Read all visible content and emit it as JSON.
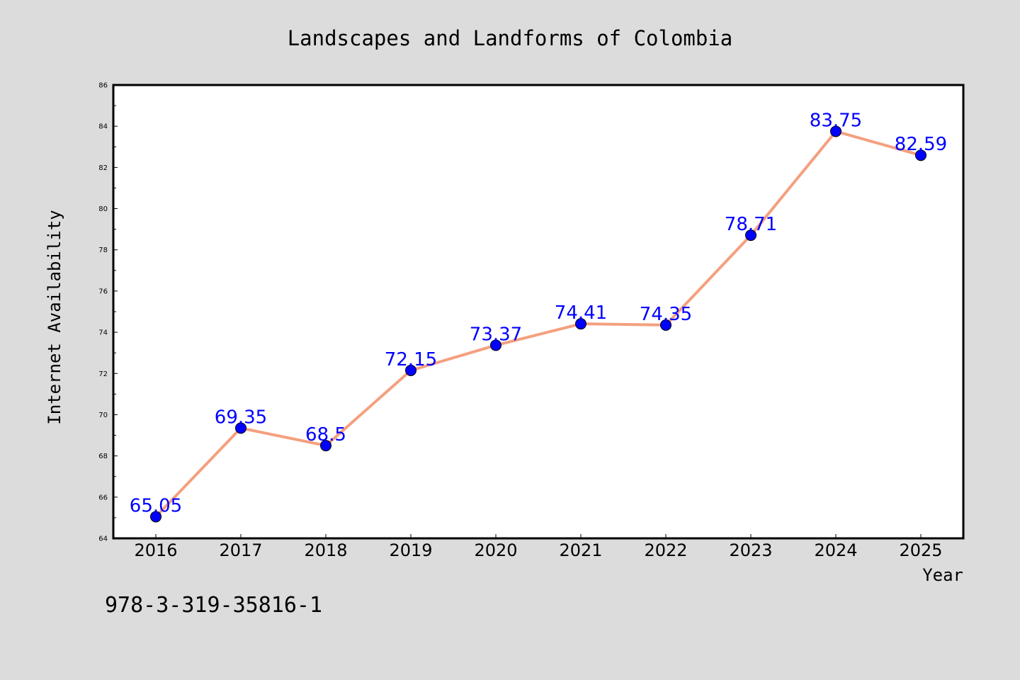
{
  "chart_data": {
    "type": "line",
    "title": "Landscapes and Landforms of Colombia",
    "xlabel": "Year",
    "ylabel": "Internet Availability",
    "categories": [
      "2016",
      "2017",
      "2018",
      "2019",
      "2020",
      "2021",
      "2022",
      "2023",
      "2024",
      "2025"
    ],
    "series": [
      {
        "values": [
          65.05,
          69.35,
          68.5,
          72.15,
          73.37,
          74.41,
          74.35,
          78.71,
          83.75,
          82.59
        ],
        "labels": [
          "65.05",
          "69.35",
          "68.5",
          "72.15",
          "73.37",
          "74.41",
          "74.35",
          "78.71",
          "83.75",
          "82.59"
        ]
      }
    ],
    "ylim": [
      64,
      86
    ],
    "yticks": [
      "64",
      "66",
      "68",
      "70",
      "72",
      "74",
      "76",
      "78",
      "80",
      "82",
      "84",
      "86"
    ],
    "grid": false,
    "legend": "none",
    "colors": {
      "line": "#f4a07f",
      "marker": "#0000ff",
      "data_label": "#0000ff",
      "background": "#dcdcdc",
      "plot_area": "#ffffff"
    }
  },
  "footnote": "978-3-319-35816-1"
}
